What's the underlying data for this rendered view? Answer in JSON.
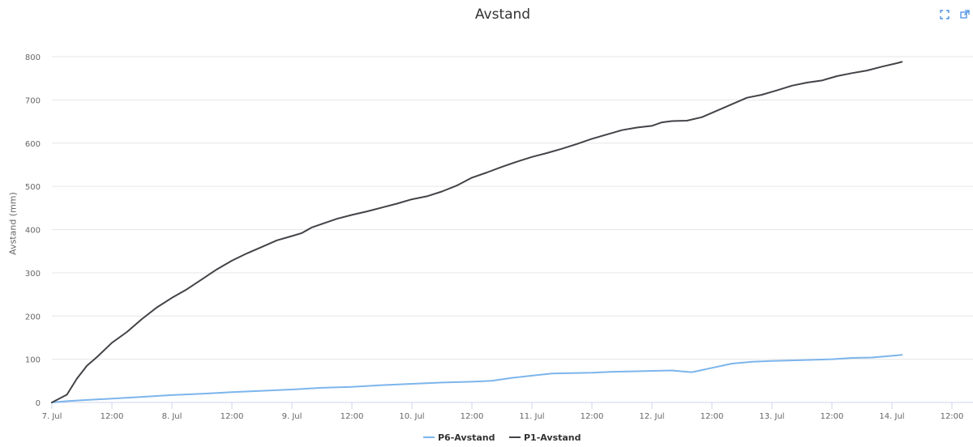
{
  "colors": {
    "p6": "#7cb5ec",
    "p1": "#434348",
    "grid": "#e6e6e6",
    "axis": "#ccd6eb",
    "icon": "#4a90e2"
  },
  "toolbar": {
    "fullscreen_icon": "fullscreen-icon",
    "external_icon": "external-link-icon"
  },
  "chart_data": {
    "type": "line",
    "title": "Avstand",
    "ylabel": "Avstand (mm)",
    "xlabel": "",
    "ylim": [
      0,
      800
    ],
    "y_ticks": [
      0,
      100,
      200,
      300,
      400,
      500,
      600,
      700,
      800
    ],
    "x_unit": "hours from 7. Jul 00:00",
    "xlim": [
      0,
      180
    ],
    "x_ticks": [
      {
        "x": 0,
        "label": "7. Jul"
      },
      {
        "x": 12,
        "label": "12:00"
      },
      {
        "x": 24,
        "label": "8. Jul"
      },
      {
        "x": 36,
        "label": "12:00"
      },
      {
        "x": 48,
        "label": "9. Jul"
      },
      {
        "x": 60,
        "label": "12:00"
      },
      {
        "x": 72,
        "label": "10. Jul"
      },
      {
        "x": 84,
        "label": "12:00"
      },
      {
        "x": 96,
        "label": "11. Jul"
      },
      {
        "x": 108,
        "label": "12:00"
      },
      {
        "x": 120,
        "label": "12. Jul"
      },
      {
        "x": 132,
        "label": "12:00"
      },
      {
        "x": 144,
        "label": "13. Jul"
      },
      {
        "x": 156,
        "label": "12:00"
      },
      {
        "x": 168,
        "label": "14. Jul"
      },
      {
        "x": 180,
        "label": "12:00"
      }
    ],
    "grid": true,
    "legend": "bottom-center",
    "series": [
      {
        "name": "P6-Avstand",
        "color_key": "p6",
        "points": [
          [
            0,
            0
          ],
          [
            3,
            3
          ],
          [
            6,
            5
          ],
          [
            12,
            9
          ],
          [
            18,
            13
          ],
          [
            24,
            17
          ],
          [
            30,
            20
          ],
          [
            36,
            24
          ],
          [
            42,
            27
          ],
          [
            48,
            30
          ],
          [
            54,
            34
          ],
          [
            60,
            36
          ],
          [
            66,
            40
          ],
          [
            72,
            43
          ],
          [
            78,
            46
          ],
          [
            84,
            48
          ],
          [
            88,
            50
          ],
          [
            92,
            57
          ],
          [
            96,
            62
          ],
          [
            100,
            67
          ],
          [
            104,
            68
          ],
          [
            108,
            69
          ],
          [
            112,
            71
          ],
          [
            116,
            72
          ],
          [
            120,
            73
          ],
          [
            124,
            74
          ],
          [
            126,
            72
          ],
          [
            128,
            70
          ],
          [
            130,
            75
          ],
          [
            132,
            80
          ],
          [
            136,
            90
          ],
          [
            140,
            94
          ],
          [
            144,
            96
          ],
          [
            150,
            98
          ],
          [
            156,
            100
          ],
          [
            160,
            103
          ],
          [
            164,
            104
          ],
          [
            168,
            108
          ],
          [
            170,
            110
          ]
        ]
      },
      {
        "name": "P1-Avstand",
        "color_key": "p1",
        "points": [
          [
            0,
            0
          ],
          [
            3,
            18
          ],
          [
            5,
            55
          ],
          [
            7,
            85
          ],
          [
            9,
            105
          ],
          [
            12,
            138
          ],
          [
            15,
            163
          ],
          [
            18,
            193
          ],
          [
            21,
            220
          ],
          [
            24,
            242
          ],
          [
            27,
            262
          ],
          [
            30,
            285
          ],
          [
            33,
            308
          ],
          [
            36,
            328
          ],
          [
            39,
            345
          ],
          [
            42,
            360
          ],
          [
            45,
            375
          ],
          [
            48,
            385
          ],
          [
            50,
            392
          ],
          [
            52,
            405
          ],
          [
            54,
            413
          ],
          [
            57,
            425
          ],
          [
            60,
            434
          ],
          [
            63,
            442
          ],
          [
            66,
            451
          ],
          [
            69,
            460
          ],
          [
            72,
            470
          ],
          [
            75,
            477
          ],
          [
            78,
            488
          ],
          [
            81,
            502
          ],
          [
            84,
            520
          ],
          [
            87,
            532
          ],
          [
            90,
            545
          ],
          [
            93,
            557
          ],
          [
            96,
            568
          ],
          [
            99,
            577
          ],
          [
            102,
            587
          ],
          [
            105,
            598
          ],
          [
            108,
            610
          ],
          [
            111,
            620
          ],
          [
            114,
            630
          ],
          [
            117,
            636
          ],
          [
            120,
            640
          ],
          [
            122,
            648
          ],
          [
            124,
            651
          ],
          [
            127,
            652
          ],
          [
            130,
            660
          ],
          [
            133,
            675
          ],
          [
            136,
            690
          ],
          [
            139,
            705
          ],
          [
            142,
            712
          ],
          [
            145,
            722
          ],
          [
            148,
            733
          ],
          [
            151,
            740
          ],
          [
            154,
            745
          ],
          [
            157,
            755
          ],
          [
            160,
            762
          ],
          [
            163,
            768
          ],
          [
            166,
            777
          ],
          [
            169,
            785
          ],
          [
            170,
            788
          ]
        ]
      }
    ]
  }
}
